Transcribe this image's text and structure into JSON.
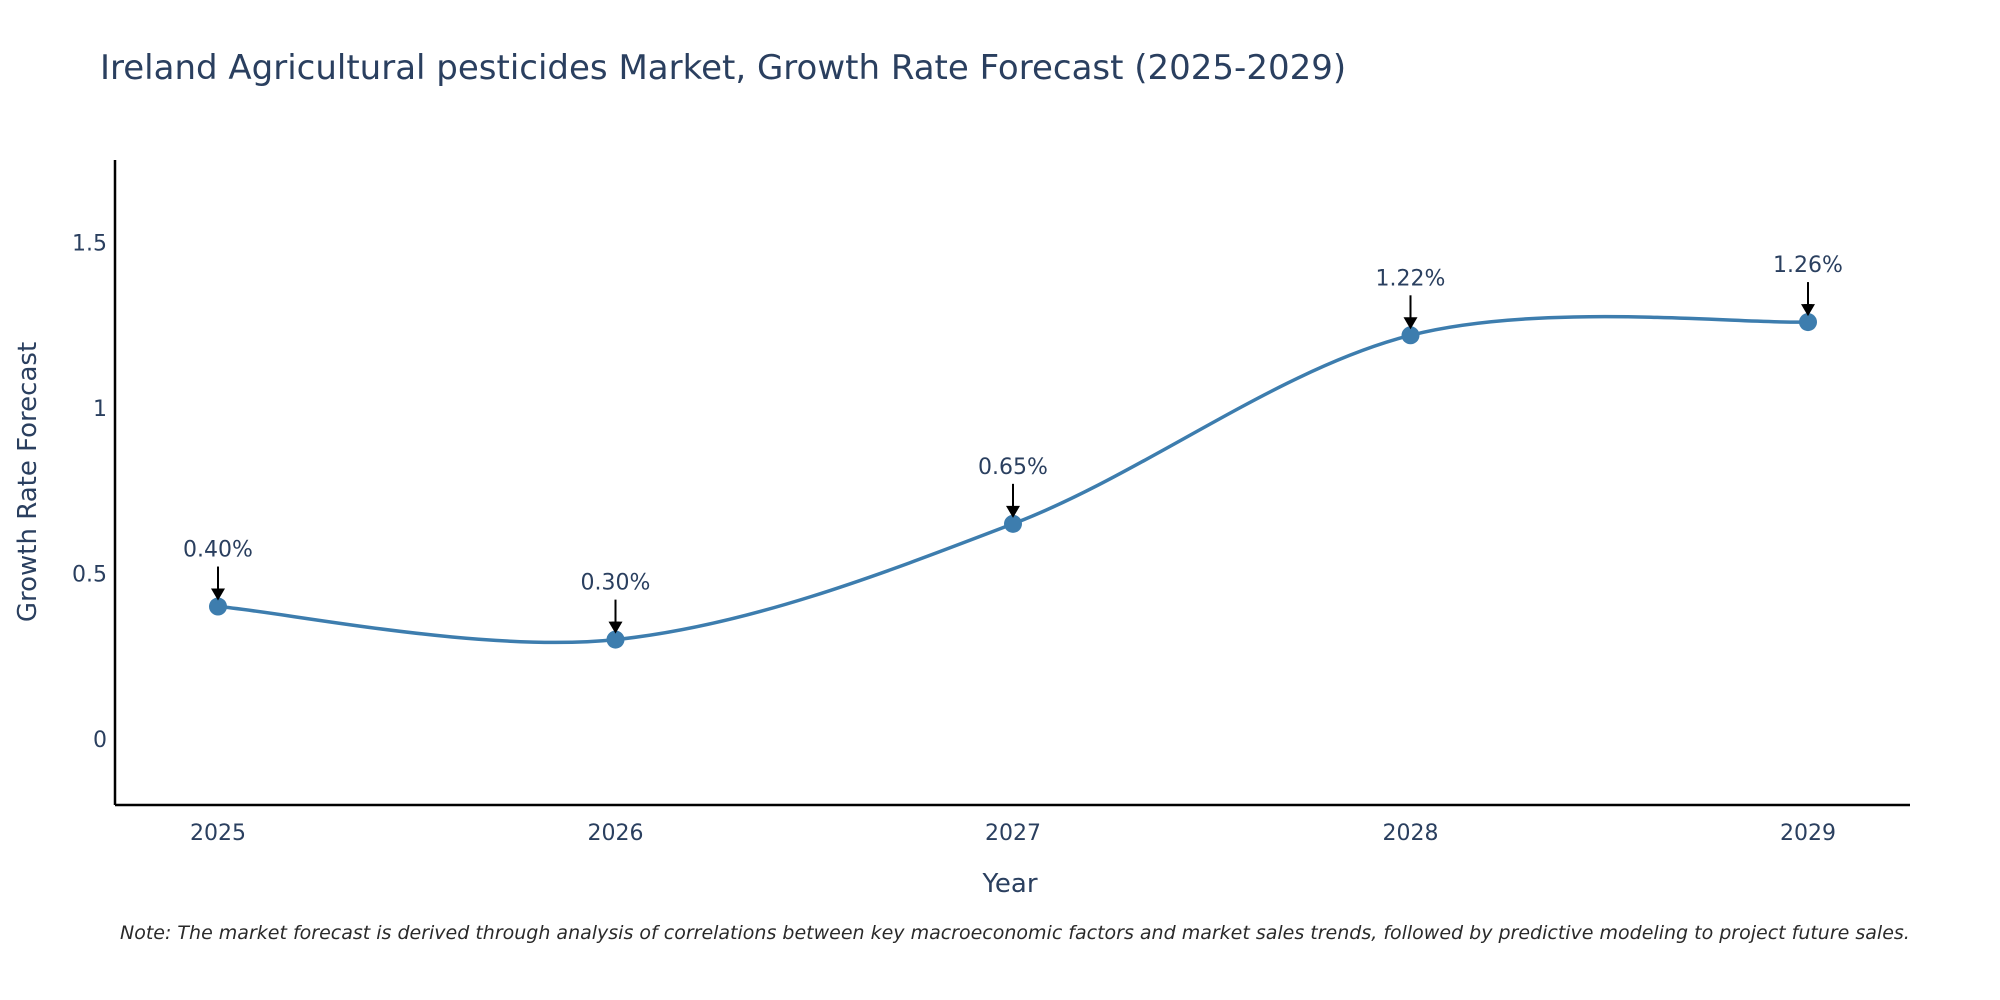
{
  "chart_data": {
    "type": "line",
    "title": "Ireland Agricultural pesticides Market, Growth Rate Forecast (2025-2029)",
    "xlabel": "Year",
    "ylabel": "Growth Rate Forecast",
    "categories": [
      "2025",
      "2026",
      "2027",
      "2028",
      "2029"
    ],
    "values": [
      0.4,
      0.3,
      0.65,
      1.22,
      1.26
    ],
    "data_labels": [
      "0.40%",
      "0.30%",
      "0.65%",
      "1.22%",
      "1.26%"
    ],
    "y_ticks": [
      0,
      0.5,
      1,
      1.5
    ],
    "y_tick_labels": [
      "0",
      "0.5",
      "1",
      "1.5"
    ],
    "ylim": [
      -0.2,
      1.75
    ],
    "grid": false,
    "line_shape": "spline",
    "colors": {
      "line": "#3d7dae",
      "marker": "#3d7dae",
      "arrow": "#000000",
      "text": "#2a3f5f",
      "axis": "#000000"
    }
  },
  "note": "Note: The market forecast is derived through analysis of correlations between key macroeconomic factors and market sales trends, followed by predictive modeling to project future sales."
}
